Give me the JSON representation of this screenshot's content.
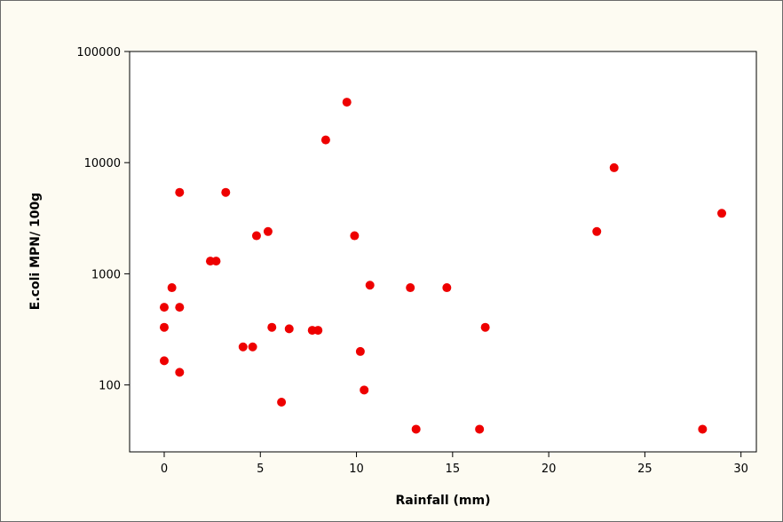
{
  "chart_data": {
    "type": "scatter",
    "title": "",
    "xlabel": "Rainfall (mm)",
    "ylabel": "E.coli MPN/ 100g",
    "xlim": [
      -1.8,
      30.8
    ],
    "ylim": [
      25,
      100000
    ],
    "y_scale": "log",
    "grid": false,
    "marker_color": "#ee0000",
    "background_color": "#fdfbf2",
    "x_ticks": [
      0,
      5,
      10,
      15,
      20,
      25,
      30
    ],
    "x_tick_labels": [
      "0",
      "5",
      "10",
      "15",
      "20",
      "25",
      "30"
    ],
    "y_ticks": [
      100,
      1000,
      10000,
      100000
    ],
    "y_tick_labels": [
      "100",
      "1000",
      "10000",
      "100000"
    ],
    "points": [
      {
        "x": 0.0,
        "y": 500
      },
      {
        "x": 0.0,
        "y": 330
      },
      {
        "x": 0.0,
        "y": 165
      },
      {
        "x": 0.4,
        "y": 750
      },
      {
        "x": 0.8,
        "y": 5400
      },
      {
        "x": 0.8,
        "y": 500
      },
      {
        "x": 0.8,
        "y": 130
      },
      {
        "x": 2.4,
        "y": 1300
      },
      {
        "x": 2.7,
        "y": 1300
      },
      {
        "x": 3.2,
        "y": 5400
      },
      {
        "x": 4.1,
        "y": 220
      },
      {
        "x": 4.6,
        "y": 220
      },
      {
        "x": 4.8,
        "y": 2200
      },
      {
        "x": 5.4,
        "y": 2400
      },
      {
        "x": 5.6,
        "y": 330
      },
      {
        "x": 6.1,
        "y": 70
      },
      {
        "x": 6.5,
        "y": 320
      },
      {
        "x": 7.7,
        "y": 310
      },
      {
        "x": 8.0,
        "y": 310
      },
      {
        "x": 8.4,
        "y": 16000
      },
      {
        "x": 9.5,
        "y": 35000
      },
      {
        "x": 9.9,
        "y": 2200
      },
      {
        "x": 10.2,
        "y": 200
      },
      {
        "x": 10.4,
        "y": 90
      },
      {
        "x": 10.7,
        "y": 790
      },
      {
        "x": 12.8,
        "y": 750
      },
      {
        "x": 13.1,
        "y": 40
      },
      {
        "x": 14.7,
        "y": 750
      },
      {
        "x": 16.4,
        "y": 40
      },
      {
        "x": 16.7,
        "y": 330
      },
      {
        "x": 22.5,
        "y": 2400
      },
      {
        "x": 23.4,
        "y": 9000
      },
      {
        "x": 28.0,
        "y": 40
      },
      {
        "x": 29.0,
        "y": 3500
      }
    ]
  }
}
